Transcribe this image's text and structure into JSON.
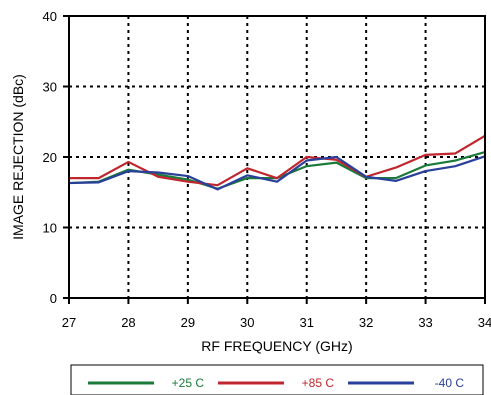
{
  "chart_data": {
    "type": "line",
    "title": "",
    "xlabel": "RF FREQUENCY (GHz)",
    "ylabel": "IMAGE REJECTION (dBc)",
    "xlim": [
      27,
      34
    ],
    "ylim": [
      0,
      40
    ],
    "x_ticks": [
      27,
      28,
      29,
      30,
      31,
      32,
      33,
      34
    ],
    "y_ticks": [
      0,
      10,
      20,
      30,
      40
    ],
    "grid": true,
    "legend_position": "bottom",
    "x": [
      27,
      27.5,
      28,
      28.5,
      29,
      29.5,
      30,
      30.5,
      31,
      31.5,
      32,
      32.5,
      33,
      33.5,
      34
    ],
    "series": [
      {
        "name": "+25 C",
        "color": "#1a7a3a",
        "values": [
          16.3,
          16.5,
          18.2,
          17.5,
          16.8,
          15.5,
          17.0,
          17.0,
          18.7,
          19.2,
          17.0,
          17.0,
          18.8,
          19.5,
          20.7
        ]
      },
      {
        "name": "+85 C",
        "color": "#c0262d",
        "values": [
          17.0,
          17.0,
          19.3,
          17.2,
          16.5,
          16.0,
          18.4,
          17.0,
          20.0,
          19.6,
          17.2,
          18.5,
          20.3,
          20.5,
          23.0
        ]
      },
      {
        "name": "-40 C",
        "color": "#2a3f9a",
        "values": [
          16.3,
          16.4,
          18.0,
          17.8,
          17.3,
          15.4,
          17.4,
          16.5,
          19.5,
          20.0,
          17.2,
          16.6,
          18.0,
          18.7,
          20.1
        ]
      }
    ]
  }
}
